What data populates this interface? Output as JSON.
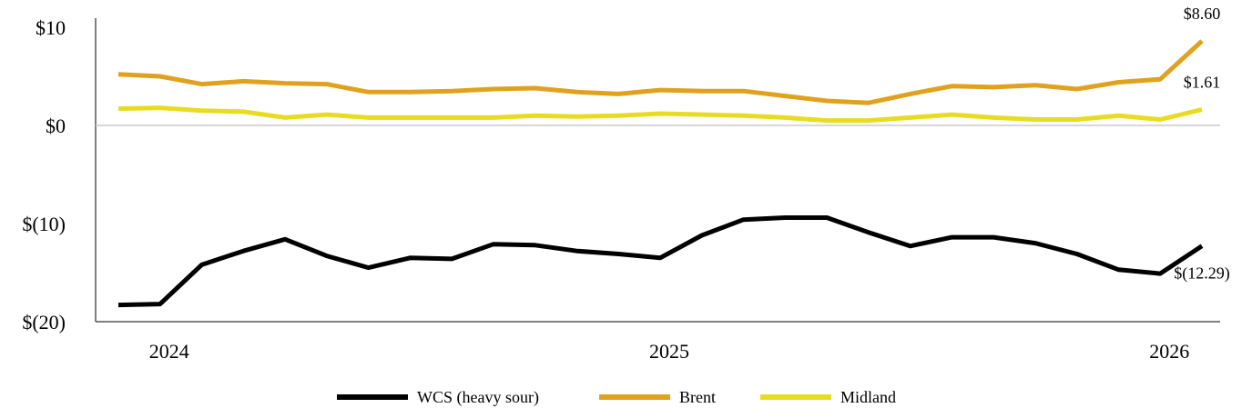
{
  "chart_data": {
    "type": "line",
    "title": "",
    "xlabel": "",
    "ylabel": "",
    "ylim": [
      -20,
      10
    ],
    "y_ticks": [
      {
        "value": 10,
        "label": "$10"
      },
      {
        "value": 0,
        "label": "$0"
      },
      {
        "value": -10,
        "label": "$(10)"
      },
      {
        "value": -20,
        "label": "$(20)"
      }
    ],
    "x_ticks": [
      {
        "label": "2024",
        "index": 1
      },
      {
        "label": "2025",
        "index": 13
      },
      {
        "label": "2026",
        "index": 25
      }
    ],
    "zero_line": true,
    "grid": false,
    "legend_position": "bottom",
    "series": [
      {
        "name": "WCS (heavy sour)",
        "color": "#000000",
        "values": [
          -18.3,
          -18.2,
          -14.2,
          -12.8,
          -11.6,
          -13.3,
          -14.5,
          -13.5,
          -13.6,
          -12.1,
          -12.2,
          -12.8,
          -13.1,
          -13.5,
          -11.2,
          -9.6,
          -9.4,
          -9.4,
          -10.9,
          -12.3,
          -11.4,
          -11.4,
          -12.0,
          -13.1,
          -14.7,
          -15.1,
          -12.29
        ],
        "end_label": "$(12.29)"
      },
      {
        "name": "Brent",
        "color": "#E0A21E",
        "values": [
          5.2,
          5.0,
          4.2,
          4.5,
          4.3,
          4.2,
          3.4,
          3.4,
          3.5,
          3.7,
          3.8,
          3.4,
          3.2,
          3.6,
          3.5,
          3.5,
          3.0,
          2.5,
          2.3,
          3.2,
          4.0,
          3.9,
          4.1,
          3.7,
          4.4,
          4.7,
          8.6
        ],
        "end_label": "$8.60"
      },
      {
        "name": "Midland",
        "color": "#E8DC23",
        "values": [
          1.7,
          1.8,
          1.5,
          1.4,
          0.8,
          1.1,
          0.8,
          0.8,
          0.8,
          0.8,
          1.0,
          0.9,
          1.0,
          1.2,
          1.1,
          1.0,
          0.8,
          0.5,
          0.5,
          0.8,
          1.1,
          0.8,
          0.6,
          0.6,
          1.0,
          0.6,
          1.61
        ],
        "end_label": "$1.61"
      }
    ]
  }
}
